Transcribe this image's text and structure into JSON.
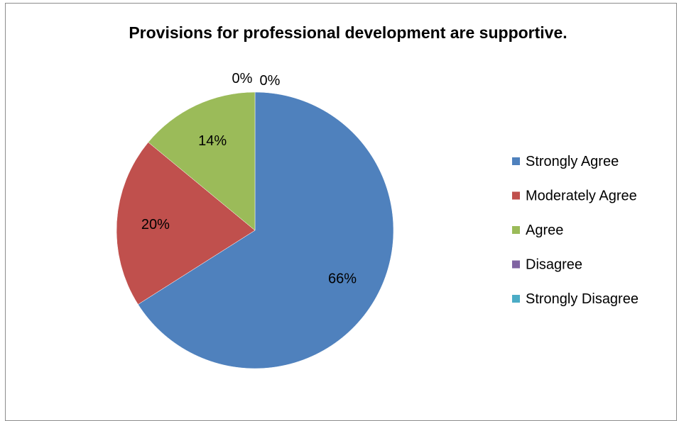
{
  "chart_data": {
    "type": "pie",
    "title": "Provisions for professional development are supportive.",
    "categories": [
      "Strongly Agree",
      "Moderately Agree",
      "Agree",
      "Disagree",
      "Strongly Disagree"
    ],
    "values": [
      66,
      20,
      14,
      0,
      0
    ],
    "labels": [
      "66%",
      "20%",
      "14%",
      "0%",
      "0%"
    ],
    "colors": [
      "#4F81BD",
      "#C0504D",
      "#9BBB59",
      "#8064A2",
      "#4BACC6"
    ],
    "start_angle": "12 o'clock",
    "direction": "clockwise",
    "legend_position": "right"
  }
}
